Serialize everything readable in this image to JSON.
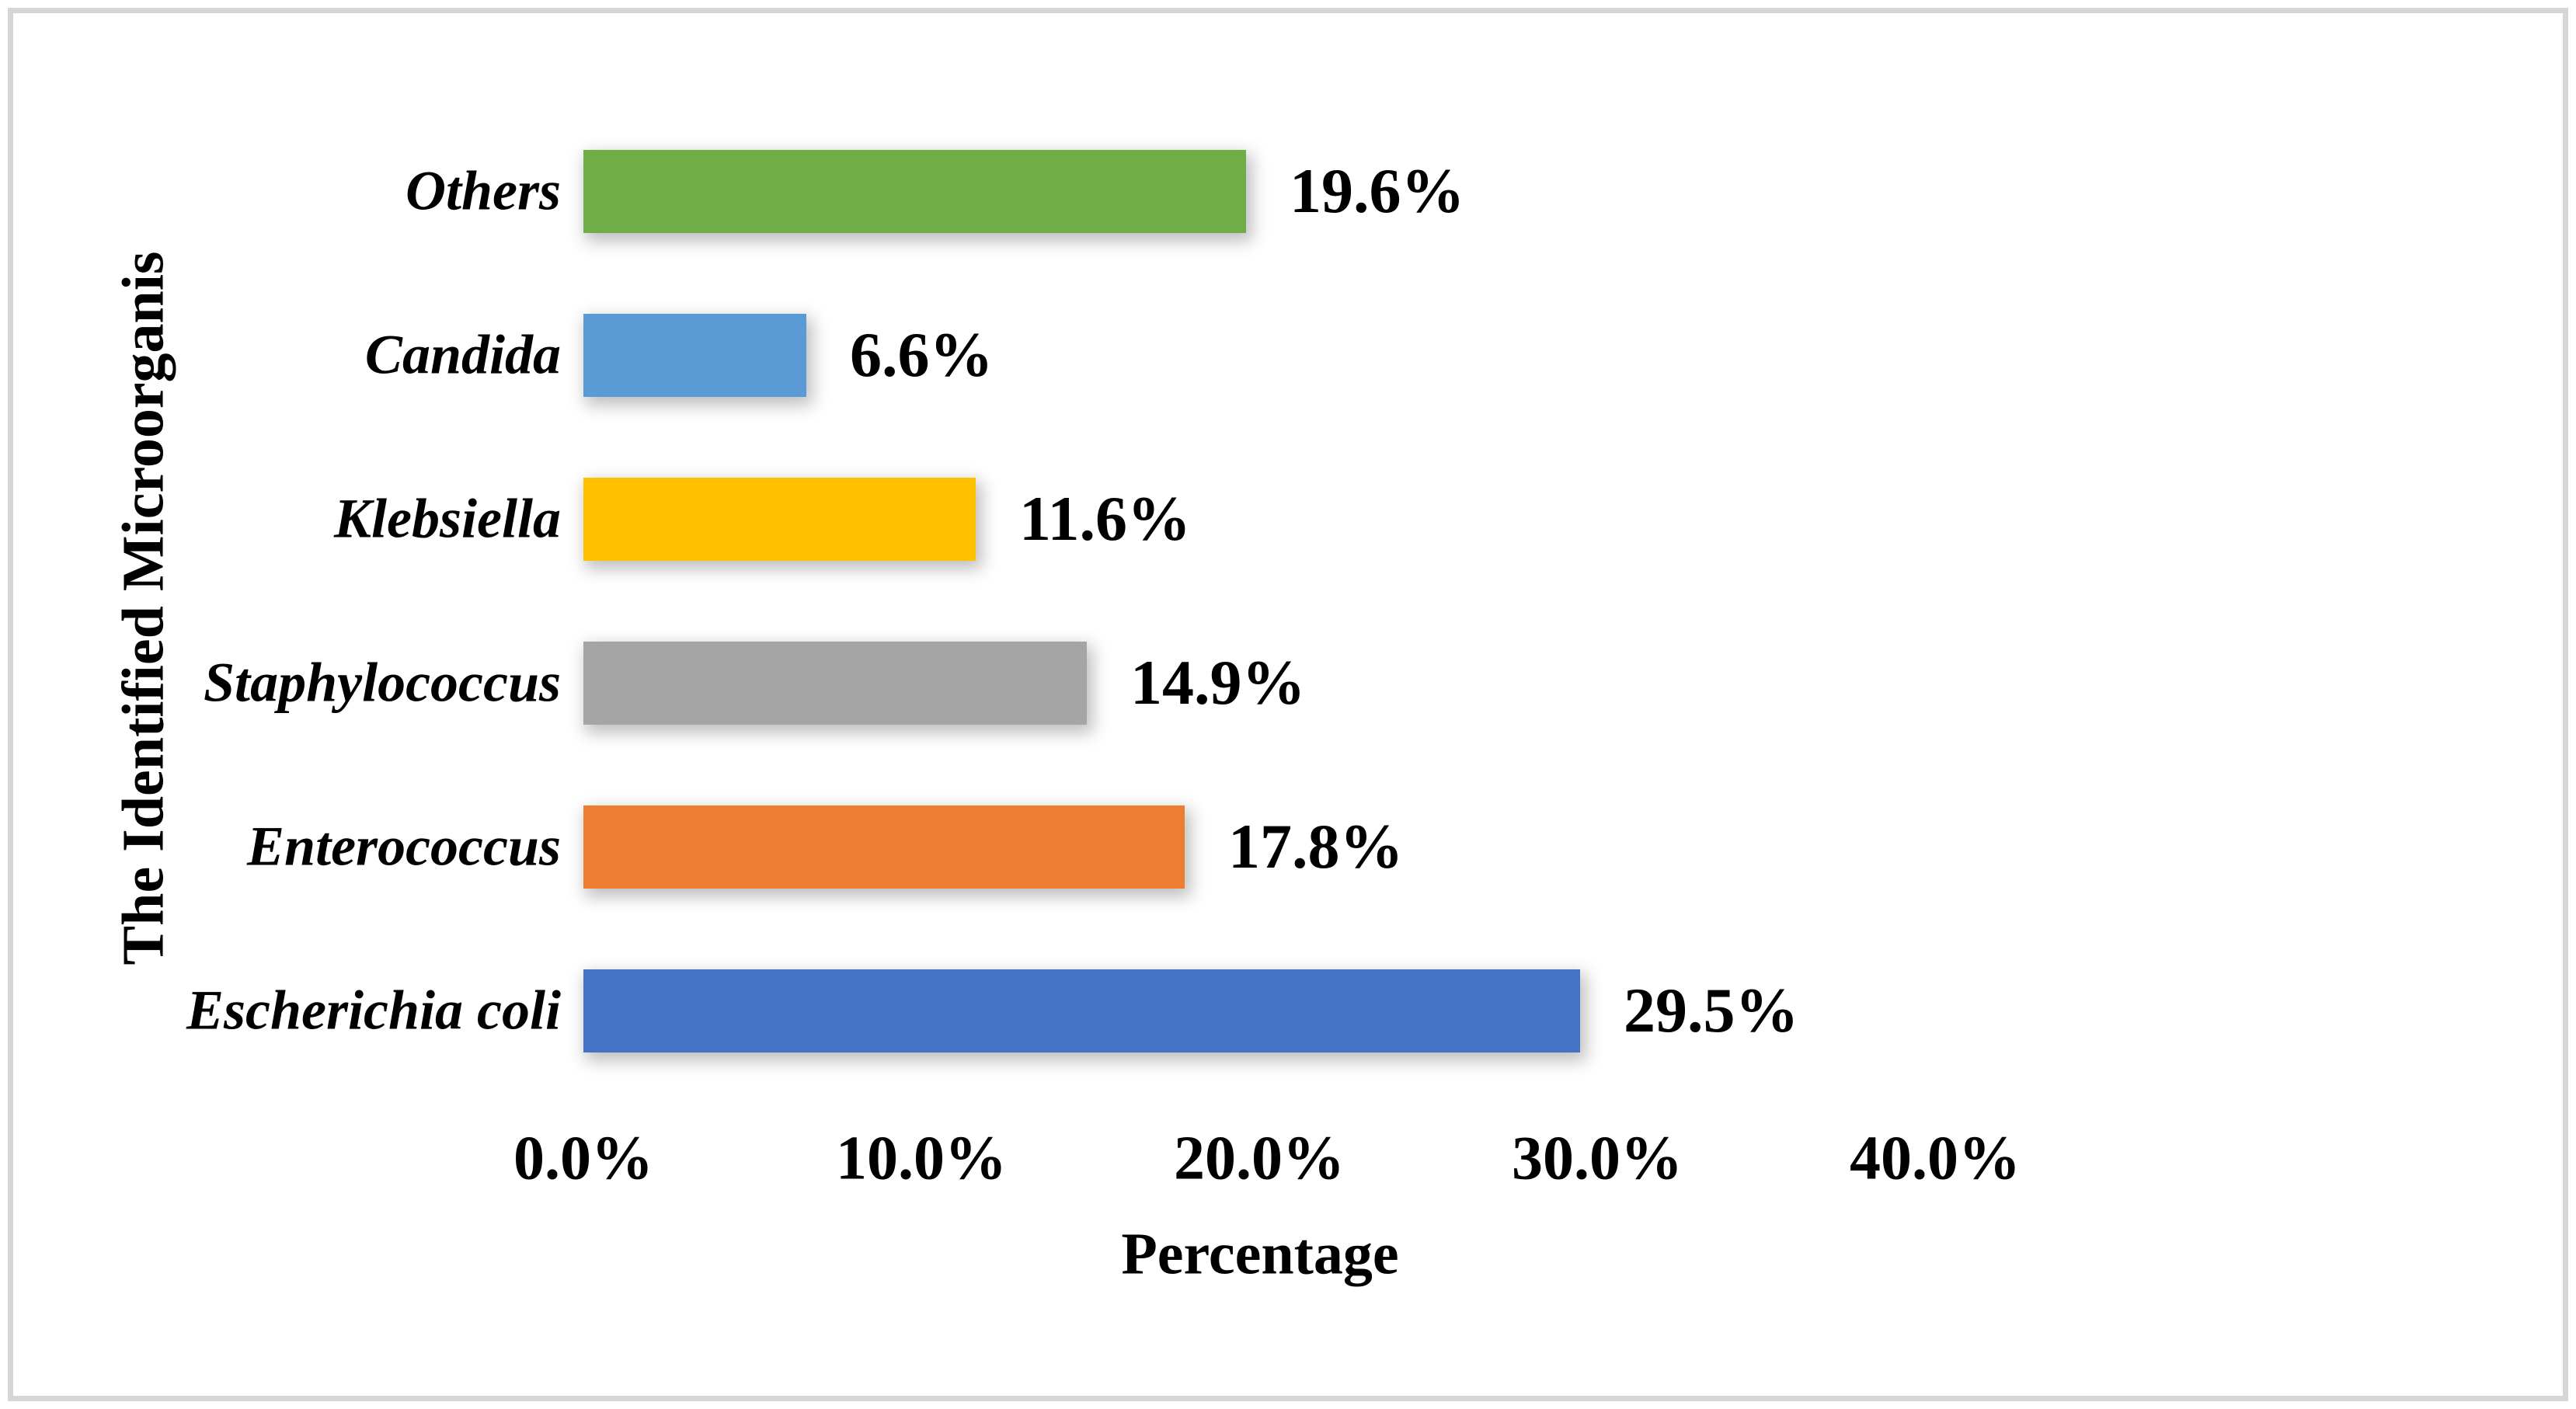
{
  "chart_data": {
    "type": "bar",
    "orientation": "horizontal",
    "title": "",
    "categories": [
      "Others",
      "Candida",
      "Klebsiella",
      "Staphylococcus",
      "Enterococcus",
      "Escherichia coli"
    ],
    "values": [
      19.6,
      6.6,
      11.6,
      14.9,
      17.8,
      29.5
    ],
    "value_labels": [
      "19.6%",
      "6.6%",
      "11.6%",
      "14.9%",
      "17.8%",
      "29.5%"
    ],
    "bar_colors": [
      "#70AD47",
      "#5B9BD5",
      "#FFC000",
      "#A5A5A5",
      "#ED7D31",
      "#4472C4"
    ],
    "xlabel": "Percentage",
    "ylabel": "The Identified Microorganis",
    "xlim": [
      0,
      40
    ],
    "x_tick_labels": [
      "0.0%",
      "10.0%",
      "20.0%",
      "30.0%",
      "40.0%"
    ],
    "x_tick_values": [
      0,
      10,
      20,
      30,
      40
    ],
    "grid": false,
    "legend": false,
    "frame_border_color": "#D6D6D6",
    "background_color": "#FFFFFF",
    "text_color": "#000000"
  }
}
